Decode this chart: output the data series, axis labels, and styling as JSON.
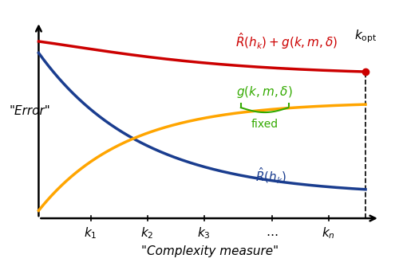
{
  "xlabel": "\"Complexity measure\"",
  "ylabel": "\"Error\"",
  "background_color": "#ffffff",
  "blue_color": "#1a3d8f",
  "red_color": "#cc0000",
  "orange_color": "#ffa500",
  "green_color": "#33aa00",
  "label_rhat": "$\\hat{R}(h_k)$",
  "label_total": "$\\hat{R}(h_k) + g(k,m,\\delta)$",
  "label_gkmd": "$g(k,m,\\delta)$",
  "label_fixed": "fixed"
}
